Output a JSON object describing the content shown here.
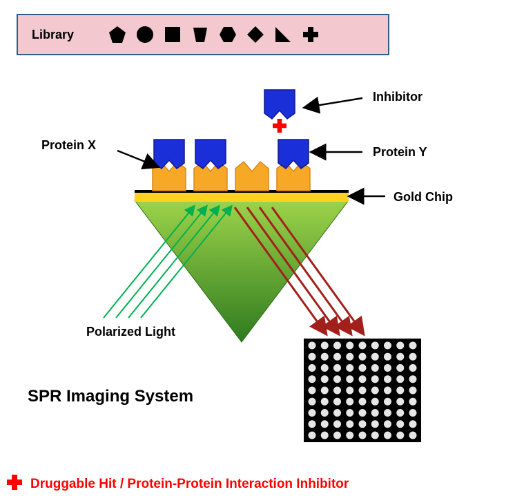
{
  "library": {
    "label": "Library",
    "box_bg": "#f3c9cf",
    "box_border": "#2e5b8a",
    "shape_color": "#000000",
    "shapes": [
      "pentagon",
      "circle",
      "square",
      "trapezoid",
      "hexagon",
      "diamond",
      "right-triangle",
      "plus"
    ]
  },
  "diagram": {
    "labels": {
      "protein_x": "Protein X",
      "protein_y": "Protein Y",
      "inhibitor": "Inhibitor",
      "gold_chip": "Gold Chip",
      "polarized_light": "Polarized Light",
      "spr_system": "SPR Imaging System"
    },
    "colors": {
      "protein_x_fill": "#f7a826",
      "protein_x_stroke": "#d6871a",
      "protein_y_fill": "#1a2fd8",
      "protein_y_stroke": "#0d1a8c",
      "gold_bar": "#ffd21f",
      "prism_top": "#9dd34a",
      "prism_bottom": "#2e7b1f",
      "incident_light": "#00b050",
      "reflected_light": "#a1201b",
      "inhibitor_cross": "#ff0000",
      "arrow": "#000000",
      "array_bg": "#000000",
      "array_dot": "#e6e6e6"
    },
    "array": {
      "rows": 9,
      "cols": 9
    }
  },
  "footer": {
    "text": "Druggable Hit / Protein-Protein Interaction Inhibitor",
    "text_color": "#ff0000",
    "cross_color": "#ff0000"
  }
}
